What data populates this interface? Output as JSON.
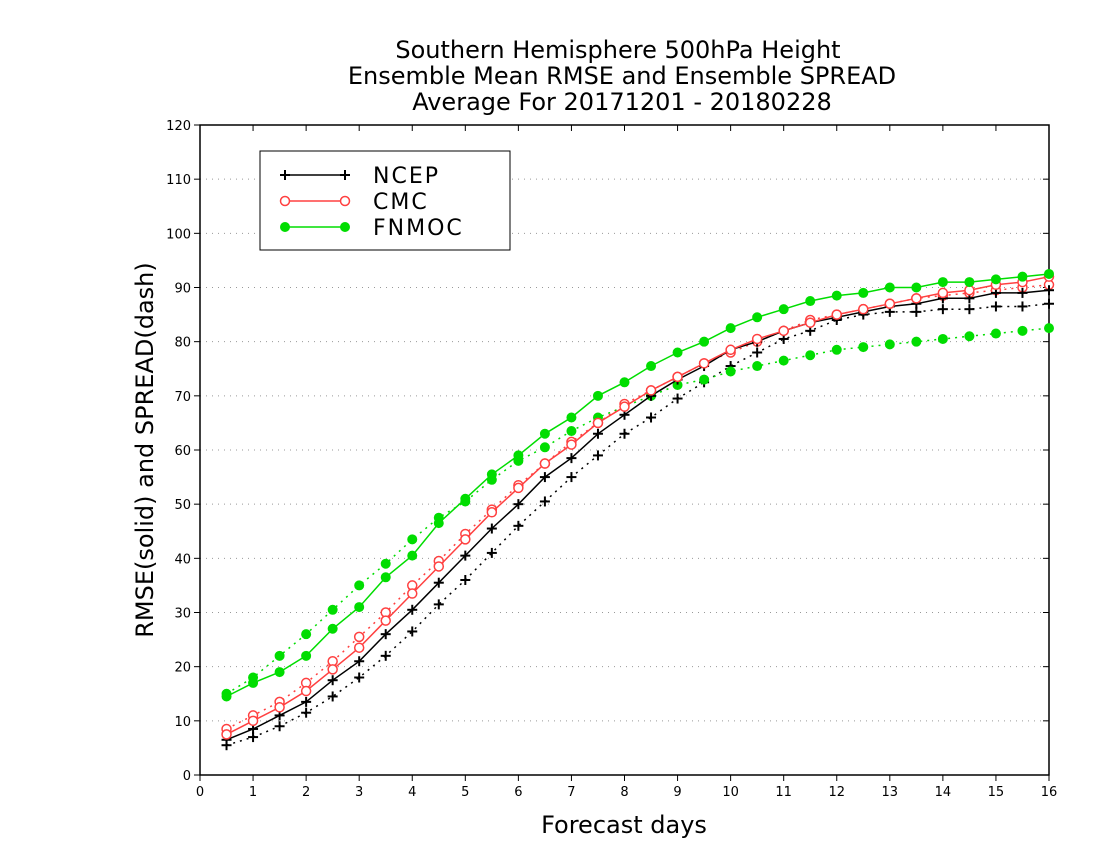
{
  "chart_data": {
    "type": "line",
    "title_lines": [
      "Southern Hemisphere 500hPa Height",
      "Ensemble Mean RMSE and Ensemble SPREAD",
      "Average For 20171201 - 20180228"
    ],
    "xlabel": "Forecast days",
    "ylabel": "RMSE(solid) and SPREAD(dash)",
    "xlim": [
      0,
      16
    ],
    "ylim": [
      0,
      120
    ],
    "xticks": [
      0,
      1,
      2,
      3,
      4,
      5,
      6,
      7,
      8,
      9,
      10,
      11,
      12,
      13,
      14,
      15,
      16
    ],
    "yticks": [
      0,
      10,
      20,
      30,
      40,
      50,
      60,
      70,
      80,
      90,
      100,
      110,
      120
    ],
    "grid": "horizontal dotted",
    "legend_position": "top-left",
    "x": [
      0.5,
      1,
      1.5,
      2,
      2.5,
      3,
      3.5,
      4,
      4.5,
      5,
      5.5,
      6,
      6.5,
      7,
      7.5,
      8,
      8.5,
      9,
      9.5,
      10,
      10.5,
      11,
      11.5,
      12,
      12.5,
      13,
      13.5,
      14,
      14.5,
      15,
      15.5,
      16
    ],
    "series": [
      {
        "name": "NCEP",
        "metric": "RMSE",
        "color": "#000000",
        "marker": "plus",
        "dash": false,
        "values": [
          6.5,
          8.5,
          11,
          13.5,
          17.5,
          21,
          26,
          30.5,
          35.5,
          40.5,
          45.5,
          50,
          55,
          58.5,
          63,
          66.5,
          70,
          73,
          75.5,
          78.5,
          80,
          82,
          83.5,
          84.5,
          85.5,
          86.5,
          87,
          88,
          88,
          89,
          89,
          89.5
        ]
      },
      {
        "name": "NCEP",
        "metric": "SPREAD",
        "color": "#000000",
        "marker": "plus",
        "dash": true,
        "values": [
          5.5,
          7,
          9,
          11.5,
          14.5,
          18,
          22,
          26.5,
          31.5,
          36,
          41,
          46,
          50.5,
          55,
          59,
          63,
          66,
          69.5,
          72.5,
          75.5,
          78,
          80.5,
          82,
          84,
          85,
          85.5,
          85.5,
          86,
          86,
          86.5,
          86.5,
          87
        ]
      },
      {
        "name": "CMC",
        "metric": "RMSE",
        "color": "#ff4040",
        "marker": "open-circle",
        "dash": false,
        "values": [
          7.5,
          10,
          12.5,
          15.5,
          19.5,
          23.5,
          28.5,
          33.5,
          38.5,
          43.5,
          48.5,
          53,
          57.5,
          61,
          65,
          68,
          71,
          73.5,
          76,
          78.5,
          80.5,
          82,
          83.5,
          85,
          86,
          87,
          88,
          89,
          89.5,
          90.5,
          91,
          92
        ]
      },
      {
        "name": "CMC",
        "metric": "SPREAD",
        "color": "#ff4040",
        "marker": "open-circle",
        "dash": true,
        "values": [
          8.5,
          11,
          13.5,
          17,
          21,
          25.5,
          30,
          35,
          39.5,
          44.5,
          49,
          53.5,
          57.5,
          61.5,
          65,
          68.5,
          71,
          73.5,
          76,
          78,
          80,
          82,
          84,
          85,
          86,
          87,
          88,
          88.5,
          89,
          89.5,
          90,
          90.5
        ]
      },
      {
        "name": "FNMOC",
        "metric": "RMSE",
        "color": "#00dd00",
        "marker": "filled-circle",
        "dash": false,
        "values": [
          14.5,
          17,
          19,
          22,
          27,
          31,
          36.5,
          40.5,
          46.5,
          51,
          55.5,
          59,
          63,
          66,
          70,
          72.5,
          75.5,
          78,
          80,
          82.5,
          84.5,
          86,
          87.5,
          88.5,
          89,
          90,
          90,
          91,
          91,
          91.5,
          92,
          92.5
        ]
      },
      {
        "name": "FNMOC",
        "metric": "SPREAD",
        "color": "#00dd00",
        "marker": "filled-circle",
        "dash": true,
        "values": [
          15,
          18,
          22,
          26,
          30.5,
          35,
          39,
          43.5,
          47.5,
          50.5,
          54.5,
          58,
          60.5,
          63.5,
          66,
          68,
          70,
          72,
          73,
          74.5,
          75.5,
          76.5,
          77.5,
          78.5,
          79,
          79.5,
          80,
          80.5,
          81,
          81.5,
          82,
          82.5
        ]
      }
    ]
  },
  "legend": [
    {
      "name": "NCEP",
      "color": "#000000",
      "marker": "plus"
    },
    {
      "name": "CMC",
      "color": "#ff4040",
      "marker": "open-circle"
    },
    {
      "name": "FNMOC",
      "color": "#00dd00",
      "marker": "filled-circle"
    }
  ]
}
